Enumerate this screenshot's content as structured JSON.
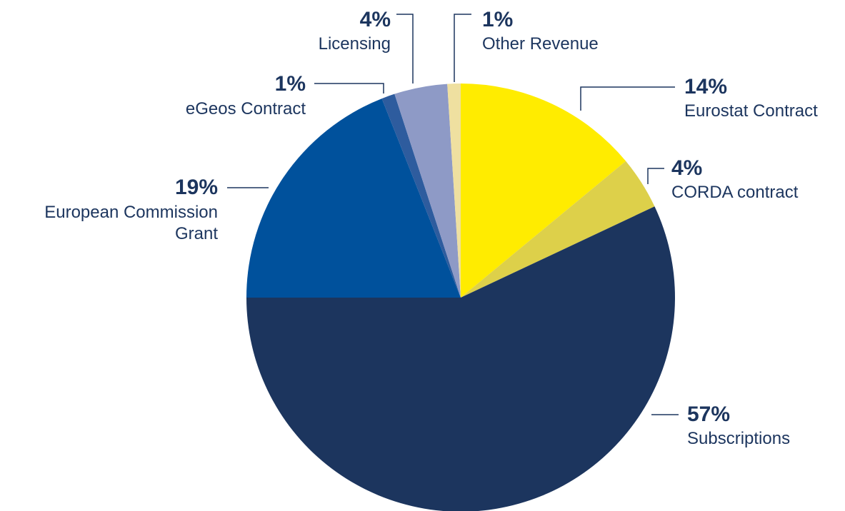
{
  "chart_data": {
    "type": "pie",
    "categories": [
      "Eurostat Contract",
      "CORDA contract",
      "Subscriptions",
      "European Commission Grant",
      "eGeos Contract",
      "Licensing",
      "Other Revenue"
    ],
    "values": [
      14,
      4,
      57,
      19,
      1,
      4,
      1
    ],
    "value_labels": [
      "14%",
      "4%",
      "57%",
      "19%",
      "1%",
      "4%",
      "1%"
    ],
    "colors": [
      "#FFEC00",
      "#DDD04A",
      "#1C355E",
      "#00519C",
      "#2E5C9E",
      "#8E9AC6",
      "#EFE0A0"
    ]
  }
}
